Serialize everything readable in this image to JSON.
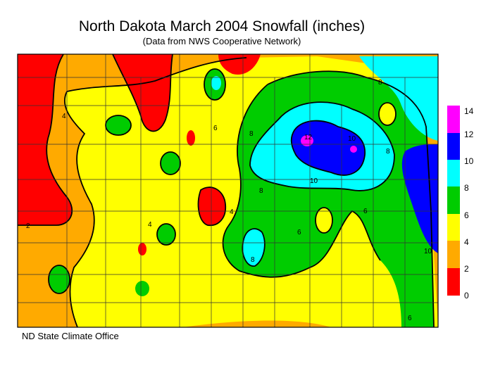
{
  "title": "North Dakota March 2004 Snowfall (inches)",
  "subtitle": "(Data from NWS Cooperative Network)",
  "credit": "ND State Climate Office",
  "legend": {
    "labels": [
      "14",
      "12",
      "10",
      "8",
      "6",
      "4",
      "2",
      "0"
    ],
    "bands": [
      {
        "range": "12-14",
        "color": "#ff00ff"
      },
      {
        "range": "10-12",
        "color": "#0000ff"
      },
      {
        "range": "8-10",
        "color": "#00ffff"
      },
      {
        "range": "6-8",
        "color": "#00cc00"
      },
      {
        "range": "4-6",
        "color": "#ffff00"
      },
      {
        "range": "2-4",
        "color": "#ffaa00"
      },
      {
        "range": "0-2",
        "color": "#ff0000"
      }
    ]
  },
  "contour_labels": [
    "2",
    "4",
    "6",
    "8",
    "10",
    "12"
  ]
}
